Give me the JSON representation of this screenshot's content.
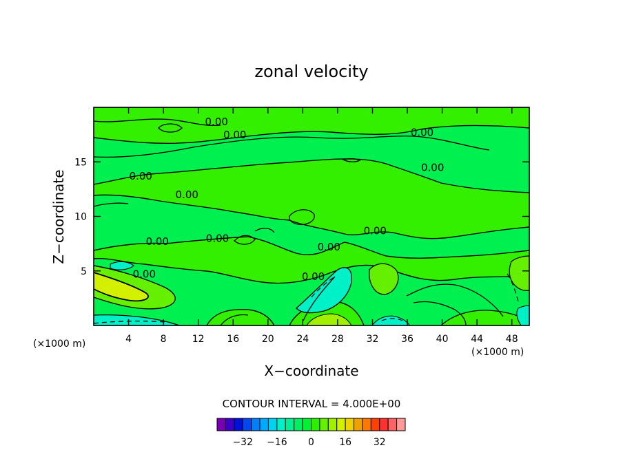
{
  "chart_data": {
    "type": "contour",
    "title": "zonal velocity",
    "xlabel": "X−coordinate",
    "ylabel": "Z−coordinate",
    "x_unit_label": "(×1000 m)",
    "z_unit_label": "(×1000 m)",
    "xlim": [
      0,
      50
    ],
    "ylim": [
      0,
      20
    ],
    "x_ticks": [
      4,
      8,
      12,
      16,
      20,
      24,
      28,
      32,
      36,
      40,
      44,
      48
    ],
    "x_tick_labels": [
      "4",
      "8",
      "12",
      "16",
      "20",
      "24",
      "28",
      "32",
      "36",
      "40",
      "44",
      "48"
    ],
    "y_ticks": [
      5,
      10,
      15
    ],
    "y_tick_labels": [
      "5",
      "10",
      "15"
    ],
    "contour_interval_text": "CONTOUR INTERVAL = 4.000E+00",
    "contour_line_labels": [
      {
        "text": "0.00",
        "x": 14.1,
        "z": 18.5
      },
      {
        "text": "0.00",
        "x": 16.2,
        "z": 17.3
      },
      {
        "text": "0.00",
        "x": 37.7,
        "z": 17.5
      },
      {
        "text": "0.00",
        "x": 38.9,
        "z": 14.3
      },
      {
        "text": "0.00",
        "x": 5.4,
        "z": 13.5
      },
      {
        "text": "0.00",
        "x": 10.7,
        "z": 11.8
      },
      {
        "text": "0.00",
        "x": 32.3,
        "z": 8.5
      },
      {
        "text": "0.00",
        "x": 7.3,
        "z": 7.5
      },
      {
        "text": "0.00",
        "x": 14.2,
        "z": 7.8
      },
      {
        "text": "0.00",
        "x": 27.0,
        "z": 7.0
      },
      {
        "text": "0.00",
        "x": 5.8,
        "z": 4.5
      },
      {
        "text": "0.00",
        "x": 25.2,
        "z": 4.3
      }
    ],
    "colorbar": {
      "colors": [
        "#7a00b4",
        "#3c00c8",
        "#0010dc",
        "#0048f0",
        "#0080ff",
        "#00aaff",
        "#00d2f0",
        "#00f0c8",
        "#00f096",
        "#00f064",
        "#00f032",
        "#2cf000",
        "#64f000",
        "#a0f000",
        "#d2f000",
        "#f0d200",
        "#f0a000",
        "#ff7800",
        "#ff4000",
        "#ff3030",
        "#ff6464",
        "#ff9a9a"
      ],
      "tick_labels": [
        "−32",
        "−16",
        "0",
        "16",
        "32"
      ]
    },
    "colors": {
      "background_field": "#00f050",
      "positive_band": "#32f000",
      "strong_positive": "#a0f000",
      "peak_positive": "#d2f000",
      "negative_band": "#00f0c8"
    }
  }
}
